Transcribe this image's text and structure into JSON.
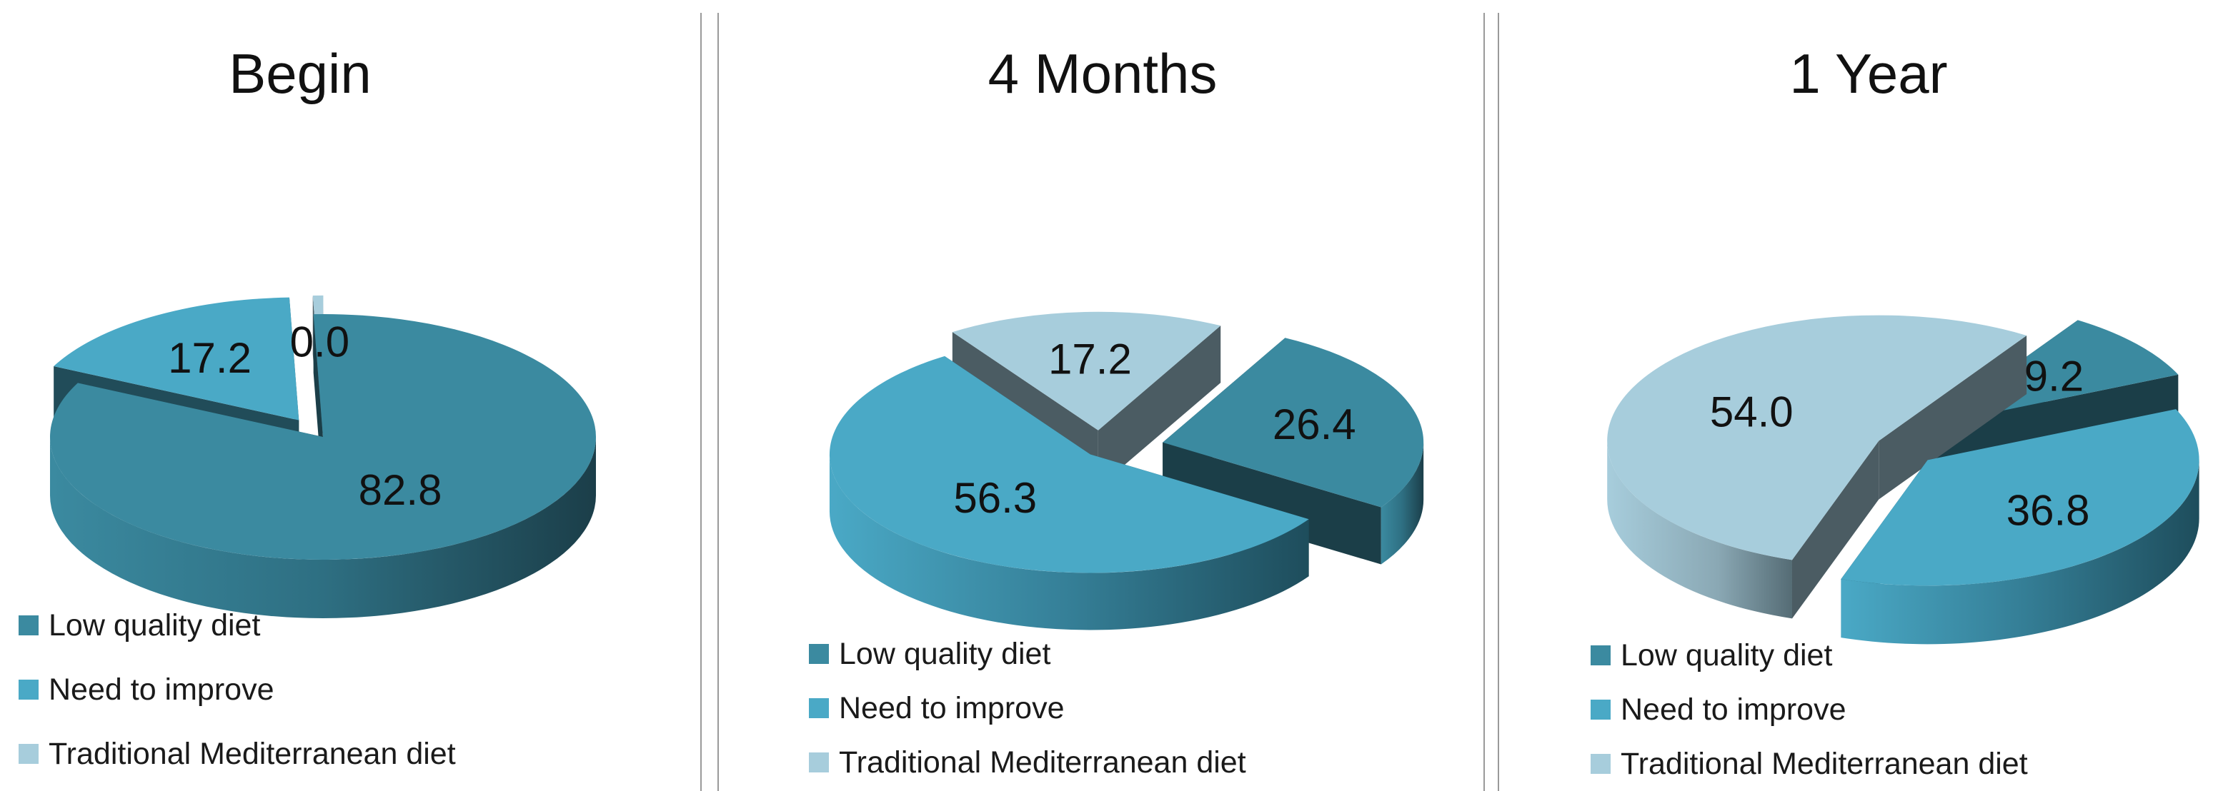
{
  "colors": {
    "low_quality": "#3b8aa0",
    "need_improve": "#4aa9c6",
    "mediterranean": "#a7cddc",
    "separator": "#9a9a9a"
  },
  "chart_data": [
    {
      "type": "pie",
      "title": "Begin",
      "labels": [
        "Low quality diet",
        "Need to improve",
        "Traditional Mediterranean diet"
      ],
      "values": [
        82.8,
        17.2,
        0.0
      ],
      "value_labels": [
        "82.8",
        "17.2",
        "0.0"
      ],
      "legend_position": "bottom-left",
      "style": "3d-exploded"
    },
    {
      "type": "pie",
      "title": "4 Months",
      "labels": [
        "Low quality diet",
        "Need to improve",
        "Traditional Mediterranean diet"
      ],
      "values": [
        26.4,
        56.3,
        17.2
      ],
      "value_labels": [
        "26.4",
        "56.3",
        "17.2"
      ],
      "legend_position": "bottom-left",
      "style": "3d-exploded"
    },
    {
      "type": "pie",
      "title": "1 Year",
      "labels": [
        "Low quality diet",
        "Need to improve",
        "Traditional Mediterranean diet"
      ],
      "values": [
        9.2,
        36.8,
        54.0
      ],
      "value_labels": [
        "9.2",
        "36.8",
        "54.0"
      ],
      "legend_position": "bottom-left",
      "style": "3d-exploded"
    }
  ]
}
